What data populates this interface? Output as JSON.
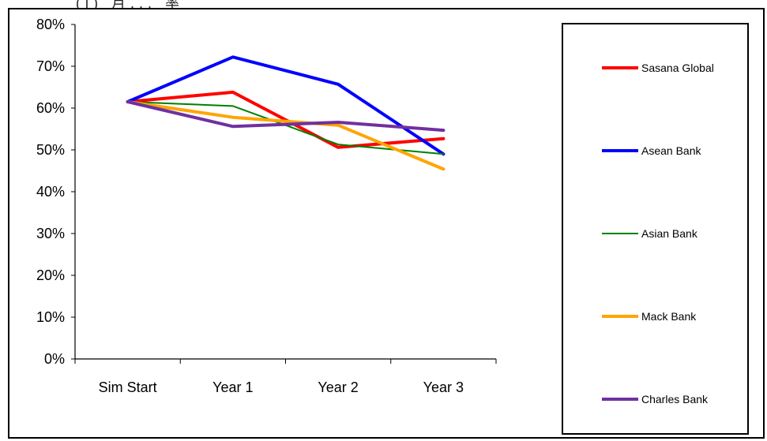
{
  "title_fragment": "(i) 月... 率",
  "chart_data": {
    "type": "line",
    "categories": [
      "Sim Start",
      "Year 1",
      "Year 2",
      "Year 3"
    ],
    "y_ticks": [
      "0%",
      "10%",
      "20%",
      "30%",
      "40%",
      "50%",
      "60%",
      "70%",
      "80%"
    ],
    "ylim": [
      0,
      80
    ],
    "grid": false,
    "legend_position": "right",
    "series": [
      {
        "name": "Sasana Global",
        "color": "#ff0000",
        "width": 4,
        "values": [
          61.5,
          63.8,
          50.6,
          52.7
        ]
      },
      {
        "name": "Asean Bank",
        "color": "#0000ff",
        "width": 4,
        "values": [
          61.5,
          72.2,
          65.7,
          49.0
        ]
      },
      {
        "name": "Asian Bank",
        "color": "#008000",
        "width": 2,
        "values": [
          61.5,
          60.5,
          51.3,
          49.0
        ]
      },
      {
        "name": "Mack Bank",
        "color": "#ffa500",
        "width": 4,
        "values": [
          61.5,
          57.8,
          55.9,
          45.4
        ]
      },
      {
        "name": "Charles Bank",
        "color": "#7030a0",
        "width": 4,
        "values": [
          61.5,
          55.6,
          56.6,
          54.7
        ]
      }
    ]
  }
}
